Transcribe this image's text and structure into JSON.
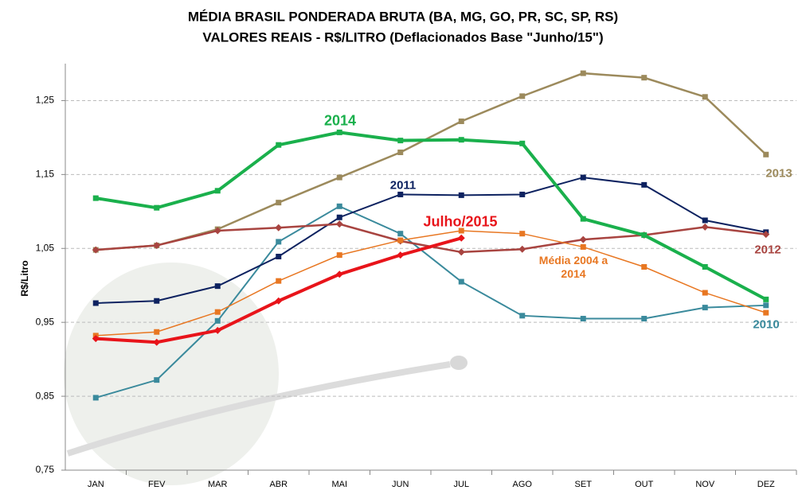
{
  "chart_data": {
    "type": "line",
    "title": "MÉDIA BRASIL PONDERADA BRUTA (BA, MG, GO, PR, SC, SP, RS)",
    "subtitle": "VALORES REAIS - R$/LITRO (Deflacionados  Base \"Junho/15\")",
    "y_label": "R$/Litro",
    "categories": [
      "JAN",
      "FEV",
      "MAR",
      "ABR",
      "MAI",
      "JUN",
      "JUL",
      "AGO",
      "SET",
      "OUT",
      "NOV",
      "DEZ"
    ],
    "ylim": [
      0.75,
      1.3
    ],
    "yticks": [
      {
        "value": 0.75,
        "label": "0,75"
      },
      {
        "value": 0.85,
        "label": "0,85"
      },
      {
        "value": 0.95,
        "label": "0,95"
      },
      {
        "value": 1.05,
        "label": "1,05"
      },
      {
        "value": 1.15,
        "label": "1,15"
      },
      {
        "value": 1.25,
        "label": "1,25"
      }
    ],
    "grid": true,
    "series": [
      {
        "name": "2013",
        "color": "#9c8a5c",
        "marker": "square",
        "values": [
          1.048,
          1.054,
          1.076,
          1.112,
          1.146,
          1.18,
          1.222,
          1.256,
          1.287,
          1.281,
          1.255,
          1.177
        ]
      },
      {
        "name": "2010",
        "color": "#3a8a9c",
        "marker": "square",
        "values": [
          0.848,
          0.872,
          0.952,
          1.059,
          1.107,
          1.07,
          1.005,
          0.959,
          0.955,
          0.955,
          0.97,
          0.973
        ]
      },
      {
        "name": "2011",
        "color": "#0d2260",
        "marker": "square",
        "values": [
          0.976,
          0.979,
          0.999,
          1.039,
          1.092,
          1.123,
          1.122,
          1.123,
          1.146,
          1.136,
          1.088,
          1.072
        ]
      },
      {
        "name": "2012",
        "color": "#a84440",
        "marker": "diamond",
        "values": [
          1.048,
          1.054,
          1.074,
          1.078,
          1.083,
          1.06,
          1.045,
          1.049,
          1.062,
          1.068,
          1.079,
          1.069
        ]
      },
      {
        "name": "Média 2004 a 2014",
        "color": "#e87722",
        "marker": "square",
        "values": [
          0.932,
          0.937,
          0.964,
          1.006,
          1.041,
          1.061,
          1.074,
          1.07,
          1.052,
          1.025,
          0.99,
          0.963
        ]
      },
      {
        "name": "2014",
        "color": "#1ab04c",
        "marker": "square",
        "values": [
          1.118,
          1.105,
          1.128,
          1.19,
          1.207,
          1.196,
          1.197,
          1.192,
          1.09,
          1.068,
          1.025,
          0.981
        ]
      },
      {
        "name": "Julho/2015",
        "color": "#e8141a",
        "marker": "diamond",
        "values": [
          0.928,
          0.923,
          0.939,
          0.979,
          1.015,
          1.041,
          1.064,
          null,
          null,
          null,
          null,
          null
        ]
      }
    ]
  }
}
